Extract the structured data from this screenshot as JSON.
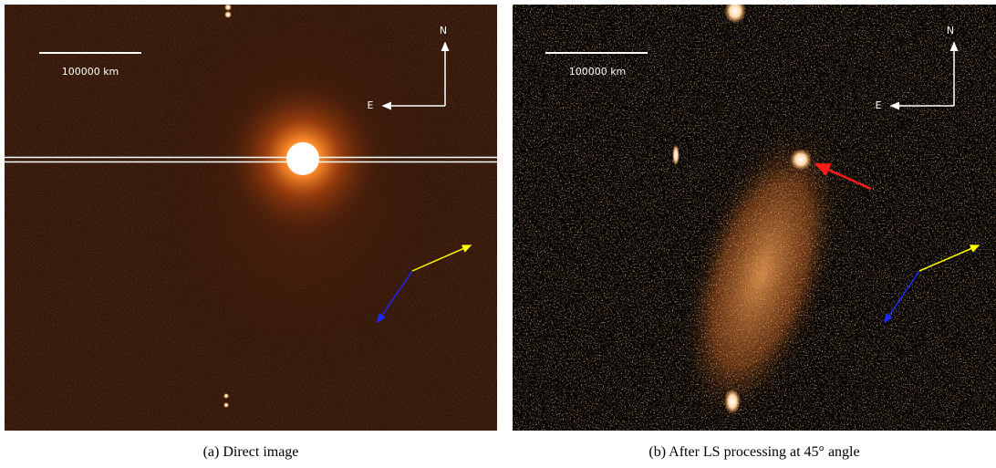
{
  "panels": [
    {
      "scale_label": "100000 km",
      "north_label": "N",
      "east_label": "E",
      "caption": "(a) Direct image"
    },
    {
      "scale_label": "100000 km",
      "north_label": "N",
      "east_label": "E",
      "caption": "(b) After LS processing at 45° angle"
    }
  ]
}
